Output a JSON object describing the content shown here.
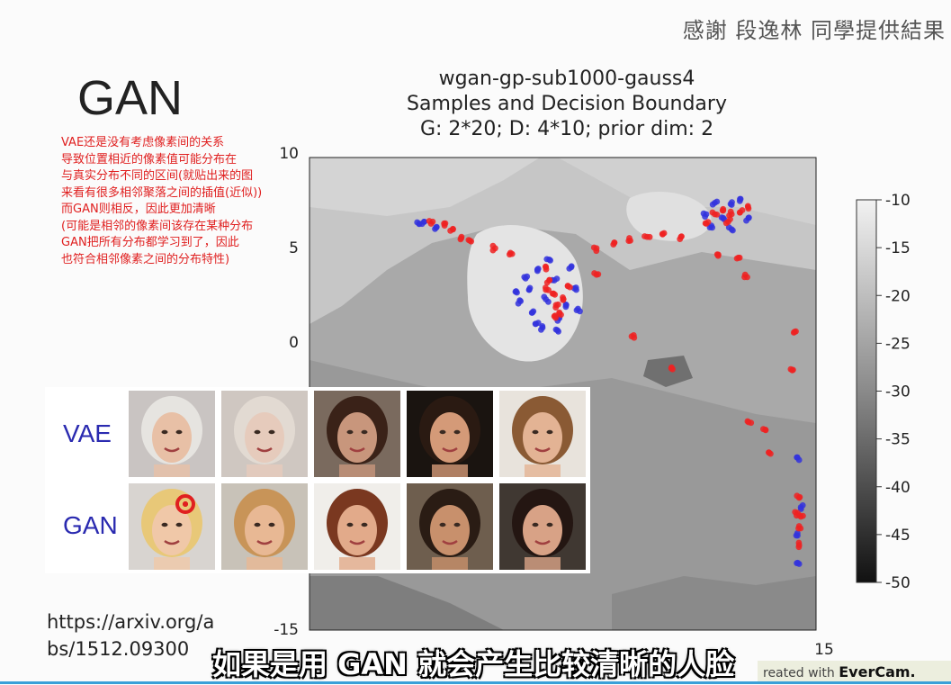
{
  "header": {
    "credit": "感謝 段逸林 同學提供結果"
  },
  "slide": {
    "title": "GAN",
    "note_lines": [
      "VAE还是没有考虑像素间的关系",
      "导致位置相近的像素值可能分布在",
      "与真实分布不同的区间(就贴出来的图",
      "来看有很多相邻聚落之间的插值(近似))",
      "而GAN则相反，因此更加清晰",
      "(可能是相邻的像素间该存在某种分布",
      "GAN把所有分布都学习到了，因此",
      "也符合相邻像素之间的分布特性)"
    ],
    "link_lines": [
      "https://arxiv.org/a",
      "bs/1512.09300"
    ],
    "subtitle": "如果是用 GAN 就会产生比较清晰的人脸",
    "watermark_prefix": "reated with ",
    "watermark_brand": "EverCam."
  },
  "plot_title": {
    "line1": "wgan-gp-sub1000-gauss4",
    "line2": "Samples and Decision Boundary",
    "line3": "G: 2*20; D: 4*10; prior dim: 2"
  },
  "chart_data": {
    "type": "scatter",
    "title": "wgan-gp-sub1000-gauss4 Samples and Decision Boundary G: 2*20; D: 4*10; prior dim: 2",
    "xlim": [
      -15,
      15
    ],
    "ylim": [
      -15,
      10
    ],
    "x_ticks_visible": [
      "15"
    ],
    "y_ticks_visible": [
      "10",
      "5",
      "0",
      "-15"
    ],
    "colorbar": {
      "ticks": [
        "-10",
        "-15",
        "-20",
        "-25",
        "-30",
        "-35",
        "-40",
        "-45",
        "-50"
      ],
      "range": [
        -50,
        -10
      ]
    },
    "series": [
      {
        "color": "#3333dd",
        "points": [
          [
            -8.5,
            6.5
          ],
          [
            -8.2,
            6.6
          ],
          [
            -7.5,
            6.3
          ],
          [
            -1.5,
            4.0
          ],
          [
            -2.0,
            3.0
          ],
          [
            -1.0,
            2.5
          ],
          [
            -0.5,
            3.5
          ],
          [
            -1.8,
            1.8
          ],
          [
            -0.2,
            1.5
          ],
          [
            0.5,
            4.2
          ],
          [
            -2.5,
            2.4
          ],
          [
            -1.2,
            1.0
          ],
          [
            -2.8,
            2.9
          ],
          [
            0.8,
            3.0
          ],
          [
            -0.8,
            4.6
          ],
          [
            -1.6,
            1.2
          ],
          [
            0.2,
            2.2
          ],
          [
            -2.2,
            3.6
          ],
          [
            0.9,
            2.0
          ],
          [
            -0.4,
            0.9
          ],
          [
            10,
            7.5
          ],
          [
            9.5,
            6.8
          ],
          [
            8.5,
            7.0
          ],
          [
            11,
            6.8
          ],
          [
            10.5,
            7.8
          ],
          [
            9,
            7.6
          ],
          [
            10,
            6.2
          ],
          [
            8.8,
            6.4
          ],
          [
            14.0,
            -6.0
          ],
          [
            14.1,
            -8.5
          ],
          [
            13.9,
            -10.0
          ],
          [
            14.0,
            -11.5
          ]
        ]
      },
      {
        "color": "#ee2222",
        "points": [
          [
            -7.8,
            6.5
          ],
          [
            -7.0,
            6.4
          ],
          [
            -6.5,
            6.2
          ],
          [
            -6.0,
            5.8
          ],
          [
            -5.5,
            5.6
          ],
          [
            -4.0,
            5.2
          ],
          [
            -3.0,
            4.9
          ],
          [
            -1.0,
            4.2
          ],
          [
            -0.8,
            3.5
          ],
          [
            -0.6,
            2.8
          ],
          [
            -0.4,
            2.2
          ],
          [
            -0.2,
            1.8
          ],
          [
            0.0,
            2.6
          ],
          [
            -1.0,
            3.0
          ],
          [
            -0.5,
            1.6
          ],
          [
            0.3,
            3.2
          ],
          [
            2.0,
            5.2
          ],
          [
            3.0,
            5.4
          ],
          [
            4.0,
            5.6
          ],
          [
            5.0,
            5.8
          ],
          [
            6.0,
            6.0
          ],
          [
            7.0,
            5.8
          ],
          [
            8.5,
            6.5
          ],
          [
            9.0,
            7.0
          ],
          [
            9.5,
            7.2
          ],
          [
            10.0,
            7.0
          ],
          [
            10.5,
            7.1
          ],
          [
            11.0,
            7.3
          ],
          [
            9.8,
            6.6
          ],
          [
            9.2,
            4.8
          ],
          [
            10.4,
            4.7
          ],
          [
            10.8,
            3.8
          ],
          [
            2.0,
            3.8
          ],
          [
            4.2,
            0.6
          ],
          [
            6.5,
            -1.2
          ],
          [
            13.5,
            -1.2
          ],
          [
            13.8,
            0.8
          ],
          [
            11.0,
            -4.0
          ],
          [
            12.0,
            -4.4
          ],
          [
            12.2,
            -5.6
          ],
          [
            14.0,
            -8.0
          ],
          [
            14.0,
            -9.5
          ],
          [
            14.0,
            -10.5
          ],
          [
            14.1,
            -9.0
          ],
          [
            13.9,
            -8.8
          ]
        ]
      }
    ]
  },
  "faces": {
    "vae_label": "VAE",
    "gan_label": "GAN",
    "vae": [
      {
        "skin": "#e8c0a6",
        "hair": "#e6e4e0",
        "bg": "#c9c4c2"
      },
      {
        "skin": "#e6cbbc",
        "hair": "#e2dad2",
        "bg": "#cfc7c1"
      },
      {
        "skin": "#c8967c",
        "hair": "#3a2218",
        "bg": "#7a6a5e"
      },
      {
        "skin": "#d49a78",
        "hair": "#2a1a12",
        "bg": "#1a1410"
      },
      {
        "skin": "#e3b394",
        "hair": "#8a5a34",
        "bg": "#e8e3dc"
      }
    ],
    "gan": [
      {
        "skin": "#f0c8a8",
        "hair": "#e8c878",
        "bg": "#d8d4d0"
      },
      {
        "skin": "#e8b894",
        "hair": "#c89458",
        "bg": "#c8c2b8"
      },
      {
        "skin": "#e2aa8a",
        "hair": "#7a3820",
        "bg": "#f0eeea"
      },
      {
        "skin": "#c8906c",
        "hair": "#2a1c14",
        "bg": "#6e5e4e"
      },
      {
        "skin": "#d8a286",
        "hair": "#241612",
        "bg": "#403832"
      }
    ]
  }
}
